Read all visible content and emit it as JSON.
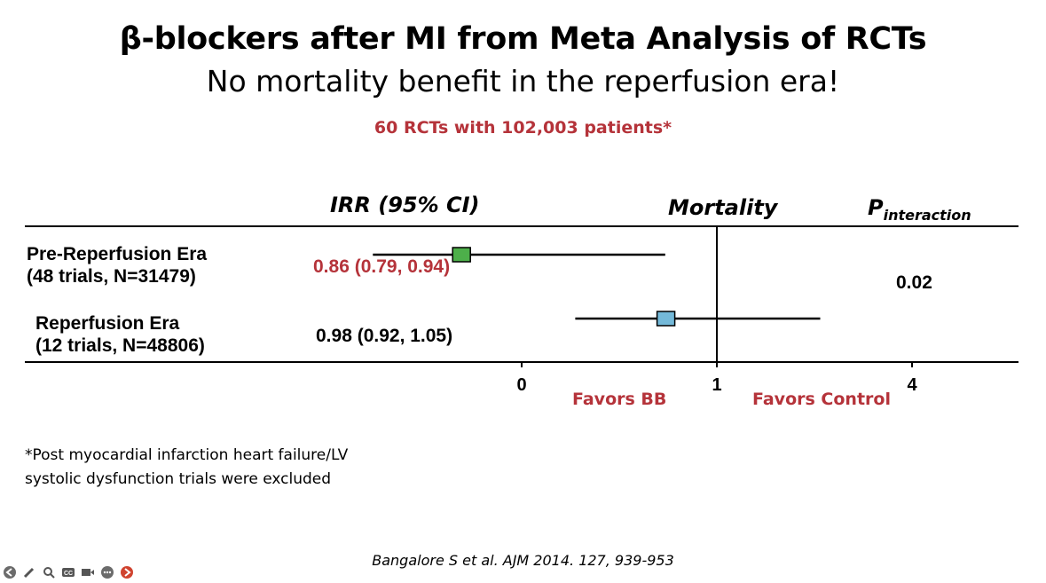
{
  "slide": {
    "title": "β-blockers after MI from Meta Analysis of RCTs",
    "subtitle": "No mortality benefit in the reperfusion era!",
    "note": "60 RCTs with 102,003 patients*",
    "footnote_line1": "*Post myocardial infarction heart failure/LV",
    "footnote_line2": "systolic dysfunction trials were excluded",
    "citation": "Bangalore S et al. AJM 2014. 127, 939-953"
  },
  "table": {
    "irr_header": "IRR (95% CI)",
    "outcome_header": "Mortality",
    "p_header_main": "P",
    "p_header_sub": "interaction",
    "p_value": "0.02",
    "rows": [
      {
        "label_line1": "Pre-Reperfusion Era",
        "label_line2": "(48 trials, N=31479)",
        "irr_text": "0.86 (0.79, 0.94)"
      },
      {
        "label_line1": "Reperfusion Era",
        "label_line2": "(12 trials, N=48806)",
        "irr_text": "0.98 (0.92, 1.05)"
      }
    ]
  },
  "chart_data": {
    "type": "forest",
    "axis_ticks": [
      "0",
      "1",
      "4"
    ],
    "reference_line": 1,
    "left_label": "Favors BB",
    "right_label": "Favors Control",
    "rows": [
      {
        "estimate": 0.86,
        "lower": 0.79,
        "upper": 0.94,
        "color": "#4daf4a"
      },
      {
        "estimate": 0.98,
        "lower": 0.92,
        "upper": 1.05,
        "color": "#74b9d9"
      }
    ]
  },
  "colors": {
    "accent_red": "#b5333a"
  },
  "toolbar": {
    "icons": [
      "back-icon",
      "pen-icon",
      "zoom-icon",
      "captions-icon",
      "camera-icon",
      "more-icon",
      "forward-icon"
    ]
  }
}
